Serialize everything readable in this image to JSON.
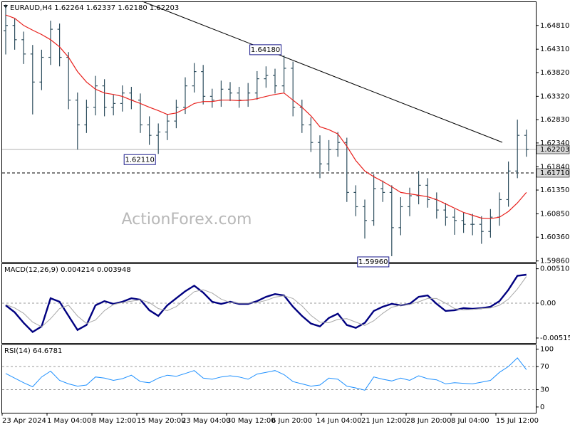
{
  "chart_data": [
    {
      "type": "ohlc",
      "title": "EURAUD,H4  1.62264 1.62337 1.62180 1.62203",
      "watermark": "ActionForex.com",
      "color": "#2f4f5f",
      "categories": [
        "23 Apr 2024",
        null,
        null,
        null,
        null,
        "1 May 04:00",
        null,
        null,
        null,
        null,
        "8 May 12:00",
        null,
        null,
        null,
        null,
        "15 May 20:00",
        null,
        null,
        null,
        null,
        "23 May 04:00",
        null,
        null,
        null,
        null,
        "30 May 12:00",
        null,
        null,
        null,
        null,
        "6 Jun 20:00",
        null,
        null,
        null,
        null,
        "14 Jun 04:00",
        null,
        null,
        null,
        null,
        "21 Jun 12:00",
        null,
        null,
        null,
        null,
        "28 Jun 20:00",
        null,
        null,
        null,
        null,
        "8 Jul 04:00",
        null,
        null,
        null,
        null,
        "15 Jul 12:00",
        null,
        null,
        null
      ],
      "open": [
        1.647,
        1.6481,
        1.6451,
        1.6421,
        1.6362,
        1.6414,
        1.6473,
        1.6414,
        1.6324,
        1.6272,
        1.6309,
        1.6354,
        1.6309,
        1.6317,
        1.6339,
        1.6324,
        1.6272,
        1.625,
        1.6257,
        1.628,
        1.6309,
        1.6354,
        1.6384,
        1.6332,
        1.6324,
        1.6347,
        1.6339,
        1.6324,
        1.6339,
        1.6369,
        1.6376,
        1.6354,
        1.6391,
        1.6309,
        1.6272,
        1.6235,
        1.619,
        1.622,
        1.6235,
        1.613,
        1.61,
        1.6071,
        1.6138,
        1.613,
        1.6056,
        1.61,
        1.6123,
        1.6145,
        1.6115,
        1.6093,
        1.6078,
        1.6071,
        1.6063,
        1.6063,
        1.6048,
        1.6078,
        1.6115,
        1.6175,
        1.625
      ],
      "high": [
        1.6525,
        1.6495,
        1.6468,
        1.644,
        1.643,
        1.6491,
        1.6485,
        1.6425,
        1.634,
        1.6325,
        1.6375,
        1.6368,
        1.6335,
        1.6355,
        1.6352,
        1.6338,
        1.629,
        1.6275,
        1.6295,
        1.6325,
        1.6372,
        1.6402,
        1.6398,
        1.6348,
        1.6365,
        1.6362,
        1.6352,
        1.636,
        1.6385,
        1.6395,
        1.639,
        1.6418,
        1.6405,
        1.6325,
        1.6288,
        1.625,
        1.624,
        1.6257,
        1.6245,
        1.6145,
        1.6115,
        1.6168,
        1.6155,
        1.6145,
        1.612,
        1.614,
        1.6175,
        1.616,
        1.613,
        1.6108,
        1.6095,
        1.6088,
        1.6085,
        1.608,
        1.6095,
        1.613,
        1.6195,
        1.6283,
        1.6262
      ],
      "low": [
        1.642,
        1.643,
        1.64,
        1.6294,
        1.6345,
        1.6398,
        1.6395,
        1.6305,
        1.622,
        1.6255,
        1.6292,
        1.629,
        1.6292,
        1.63,
        1.6305,
        1.6255,
        1.623,
        1.6211,
        1.624,
        1.6265,
        1.6295,
        1.634,
        1.6315,
        1.6308,
        1.631,
        1.6322,
        1.6308,
        1.631,
        1.6325,
        1.635,
        1.6338,
        1.634,
        1.629,
        1.6255,
        1.6215,
        1.616,
        1.6175,
        1.6205,
        1.611,
        1.608,
        1.6033,
        1.606,
        1.611,
        1.5996,
        1.604,
        1.608,
        1.6105,
        1.6098,
        1.6075,
        1.606,
        1.6041,
        1.6045,
        1.604,
        1.6022,
        1.6035,
        1.606,
        1.61,
        1.616,
        1.6205
      ],
      "close": [
        1.6481,
        1.6451,
        1.6421,
        1.6362,
        1.6414,
        1.6473,
        1.6414,
        1.6324,
        1.6272,
        1.6309,
        1.6354,
        1.6309,
        1.6317,
        1.6339,
        1.6324,
        1.6272,
        1.625,
        1.6257,
        1.628,
        1.6309,
        1.6354,
        1.6384,
        1.6332,
        1.6324,
        1.6347,
        1.6339,
        1.6324,
        1.6339,
        1.6369,
        1.6376,
        1.6354,
        1.6391,
        1.6309,
        1.6272,
        1.6235,
        1.619,
        1.622,
        1.6235,
        1.613,
        1.61,
        1.6071,
        1.6138,
        1.613,
        1.6056,
        1.61,
        1.6123,
        1.6145,
        1.6115,
        1.6093,
        1.6078,
        1.6071,
        1.6063,
        1.6063,
        1.6048,
        1.6078,
        1.6115,
        1.6175,
        1.625,
        1.62203
      ],
      "ma": {
        "color": "#e8201c",
        "values": [
          1.6503,
          1.6496,
          1.6481,
          1.6471,
          1.6462,
          1.6451,
          1.6436,
          1.6414,
          1.6384,
          1.6362,
          1.6347,
          1.6339,
          1.6336,
          1.6332,
          1.6324,
          1.6317,
          1.6309,
          1.6302,
          1.6294,
          1.6297,
          1.6306,
          1.6317,
          1.6321,
          1.6321,
          1.6324,
          1.6324,
          1.6323,
          1.6324,
          1.6327,
          1.6332,
          1.6336,
          1.6339,
          1.6324,
          1.6309,
          1.6291,
          1.6268,
          1.6262,
          1.6253,
          1.6227,
          1.6197,
          1.6175,
          1.6163,
          1.6153,
          1.6142,
          1.613,
          1.6127,
          1.6124,
          1.6121,
          1.6115,
          1.6106,
          1.6097,
          1.6088,
          1.6082,
          1.6076,
          1.6075,
          1.6078,
          1.609,
          1.6108,
          1.613
        ]
      },
      "ylim": [
        1.5984,
        1.653
      ],
      "yticks": [
        {
          "value": 1.6481,
          "label": "1.64810"
        },
        {
          "value": 1.6431,
          "label": "1.64310"
        },
        {
          "value": 1.6382,
          "label": "1.63820"
        },
        {
          "value": 1.6332,
          "label": "1.63320"
        },
        {
          "value": 1.6283,
          "label": "1.62830"
        },
        {
          "value": 1.6234,
          "label": "1.62340"
        },
        {
          "value": 1.6184,
          "label": "1.61840"
        },
        {
          "value": 1.6135,
          "label": "1.61350"
        },
        {
          "value": 1.6085,
          "label": "1.60850"
        },
        {
          "value": 1.6036,
          "label": "1.60360"
        },
        {
          "value": 1.5986,
          "label": "1.59860"
        }
      ],
      "level": {
        "value": 1.6171,
        "label": "1.61710"
      },
      "last": {
        "value": 1.62203,
        "label": "1.62203"
      },
      "annotations": [
        {
          "value": 1.6418,
          "label": "1.64180"
        },
        {
          "value": 1.6211,
          "label": "1.62110"
        },
        {
          "value": 1.5996,
          "label": "1.59960"
        }
      ]
    },
    {
      "type": "macd",
      "title": "MACD(12,26,9) 0.004214 0.003948",
      "series": [
        {
          "color": "#000080",
          "values": [
            -0.00031,
            -0.00135,
            -0.00292,
            -0.00427,
            -0.00344,
            0.00073,
            0.00021,
            -0.00188,
            -0.00396,
            -0.00323,
            -0.00031,
            0.00031,
            -0.0001,
            0.00021,
            0.00073,
            0.00052,
            -0.00104,
            -0.00188,
            -0.00031,
            0.00073,
            0.00177,
            0.0026,
            0.00156,
            0.00021,
            -0.0001,
            0.00021,
            -0.0001,
            -0.0001,
            0.00031,
            0.00094,
            0.00135,
            0.00115,
            -0.00052,
            -0.00188,
            -0.00302,
            -0.00344,
            -0.00219,
            -0.00156,
            -0.00323,
            -0.00365,
            -0.00292,
            -0.00115,
            -0.00052,
            -0.0001,
            -0.00031,
            -0.0001,
            0.00094,
            0.00115,
            -0.0001,
            -0.00115,
            -0.00104,
            -0.00073,
            -0.00083,
            -0.00073,
            -0.00052,
            0.00031,
            0.00198,
            0.00406,
            0.004214
          ]
        },
        {
          "color": "#a8a8a8",
          "values": [
            -0.0002,
            -0.0007,
            -0.0015,
            -0.0028,
            -0.0035,
            -0.0023,
            -0.0008,
            -0.0003,
            -0.0019,
            -0.003,
            -0.0025,
            -0.0011,
            -0.0002,
            0.0001,
            0.0003,
            0.0005,
            0.0001,
            -0.0008,
            -0.0011,
            -0.0005,
            0.0006,
            0.0017,
            0.002,
            0.0015,
            0.0006,
            0.0001,
            0,
            0,
            0.0001,
            0.0004,
            0.0009,
            0.0011,
            0.0007,
            -0.0004,
            -0.0018,
            -0.0028,
            -0.0029,
            -0.0024,
            -0.0023,
            -0.0028,
            -0.0033,
            -0.0026,
            -0.0015,
            -0.0006,
            -0.0003,
            -0.0002,
            0.0002,
            0.0007,
            0.0007,
            0,
            -0.0008,
            -0.001,
            -0.0009,
            -0.0008,
            -0.0007,
            -0.0003,
            0.0006,
            0.0021,
            0.003948
          ]
        }
      ],
      "ylim": [
        -0.0059,
        0.0058
      ],
      "yticks": [
        0.005102,
        {
          "value": 0,
          "label": "0.00"
        },
        -0.005159
      ],
      "levels": [
        0
      ]
    },
    {
      "type": "line",
      "title": "RSI(14) 64.6781",
      "series": [
        {
          "color": "#1e90ff",
          "values": [
            58,
            50,
            42,
            35,
            52,
            62,
            46,
            40,
            36,
            38,
            52,
            50,
            46,
            49,
            55,
            44,
            42,
            50,
            55,
            53,
            58,
            63,
            50,
            48,
            52,
            54,
            52,
            48,
            57,
            60,
            63,
            56,
            44,
            40,
            36,
            38,
            50,
            48,
            36,
            33,
            29,
            52,
            48,
            45,
            50,
            46,
            54,
            49,
            47,
            40,
            42,
            41,
            40,
            43,
            46,
            60,
            70,
            85,
            64.6781
          ]
        }
      ],
      "ylim": [
        -10,
        107
      ],
      "yticks": [
        100,
        70,
        30,
        0
      ],
      "levels": [
        70,
        30
      ]
    }
  ]
}
